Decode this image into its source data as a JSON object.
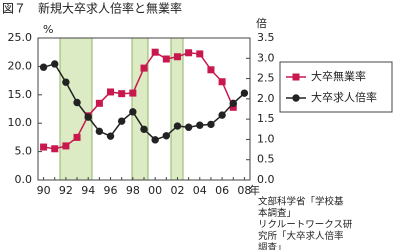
{
  "chart_data": {
    "type": "line",
    "title": "図７　新規大卒求人倍率と無業率",
    "y_label": "%",
    "y2_label": "倍",
    "x_label": "年",
    "categories": [
      "90",
      null,
      "92",
      null,
      "94",
      null,
      "96",
      null,
      "98",
      null,
      "00",
      null,
      "02",
      null,
      "04",
      null,
      "06",
      null,
      "08"
    ],
    "ylim": [
      0,
      25
    ],
    "yticks": [
      {
        "value": 0,
        "label": "0.0"
      },
      {
        "value": 5,
        "label": "5.0"
      },
      {
        "value": 10,
        "label": "10.0"
      },
      {
        "value": 15,
        "label": "15.0"
      },
      {
        "value": 20,
        "label": "20.0"
      },
      {
        "value": 25,
        "label": "25.0"
      }
    ],
    "y2lim": [
      0,
      3.5
    ],
    "y2ticks": [
      {
        "value": 0,
        "label": "0.0"
      },
      0.5,
      {
        "value": 1,
        "label": "1.0"
      },
      1.5,
      {
        "value": 2,
        "label": "2.0"
      },
      2.5,
      {
        "value": 3,
        "label": "3.0"
      },
      3.5
    ],
    "series": [
      {
        "name": "大卒無業率",
        "color": "#c8184e",
        "marker": "square",
        "values": [
          5.8,
          5.5,
          6.0,
          7.5,
          11.3,
          13.5,
          15.5,
          15.2,
          15.3,
          19.7,
          22.5,
          21.3,
          21.7,
          22.4,
          22.2,
          19.4,
          17.3,
          12.8,
          null
        ]
      },
      {
        "name": "大卒求人倍率",
        "color": "#222222",
        "marker": "circle",
        "axis": "y2",
        "values": [
          2.78,
          2.86,
          2.41,
          1.91,
          1.55,
          1.2,
          1.08,
          1.45,
          1.68,
          1.25,
          0.99,
          1.09,
          1.33,
          1.3,
          1.35,
          1.37,
          1.6,
          1.89,
          2.14
        ]
      }
    ],
    "legend_position": "right",
    "source": [
      "文部科学省「学校基",
      "本調査」",
      "リクルートワークス研",
      "究所「大卒求人倍率",
      "調査」"
    ]
  }
}
